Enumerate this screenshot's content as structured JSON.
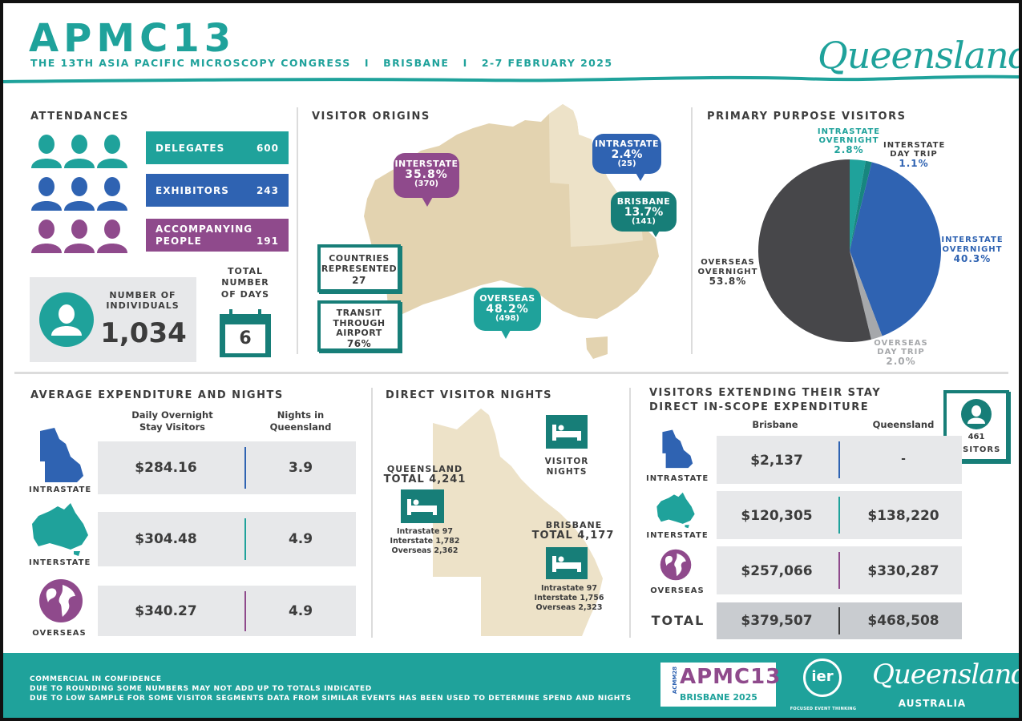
{
  "header": {
    "title": "APMC13",
    "subtitle": "THE 13TH ASIA PACIFIC MICROSCOPY CONGRESS   I   BRISBANE   I   2-7 FEBRUARY 2025",
    "brand": "Queensland"
  },
  "colors": {
    "teal": "#1fa29b",
    "blue": "#2f63b2",
    "purple": "#8f4a8c",
    "dark": "#3c3c3c",
    "grey": "#a6a8ab",
    "sand": "#e3d3b0",
    "sand_light": "#ede2c8"
  },
  "attendances": {
    "title": "ATTENDANCES",
    "rows": [
      {
        "label": "DELEGATES",
        "value": "600"
      },
      {
        "label": "EXHIBITORS",
        "value": "243"
      },
      {
        "label": "ACCOMPANYING PEOPLE",
        "value": "191"
      }
    ],
    "individuals_label": "NUMBER OF INDIVIDUALS",
    "individuals_value": "1,034",
    "days_label": "TOTAL NUMBER OF DAYS",
    "days_value": "6"
  },
  "visitor_origins": {
    "title": "VISITOR ORIGINS",
    "interstate": {
      "label": "INTERSTATE",
      "pct": "35.8%",
      "count": "(370)"
    },
    "intrastate": {
      "label": "INTRASTATE",
      "pct": "2.4%",
      "count": "(25)"
    },
    "brisbane": {
      "label": "BRISBANE",
      "pct": "13.7%",
      "count": "(141)"
    },
    "overseas": {
      "label": "OVERSEAS",
      "pct": "48.2%",
      "count": "(498)"
    },
    "countries_label": "COUNTRIES REPRESENTED",
    "countries_value": "27",
    "transit_label": "TRANSIT THROUGH AIRPORT",
    "transit_value": "76%"
  },
  "chart_data": {
    "type": "pie",
    "title": "PRIMARY PURPOSE VISITORS",
    "slices": [
      {
        "label": "INTRASTATE OVERNIGHT",
        "value": 2.8,
        "display": "2.8%",
        "color": "#1fa29b"
      },
      {
        "label": "INTERSTATE DAY TRIP",
        "value": 1.1,
        "display": "1.1%",
        "color": "#17867f"
      },
      {
        "label": "INTERSTATE OVERNIGHT",
        "value": 40.3,
        "display": "40.3%",
        "color": "#2f63b2"
      },
      {
        "label": "OVERSEAS DAY TRIP",
        "value": 2.0,
        "display": "2.0%",
        "color": "#a6a8ab"
      },
      {
        "label": "OVERSEAS OVERNIGHT",
        "value": 53.8,
        "display": "53.8%",
        "color": "#47474a"
      }
    ]
  },
  "expenditure": {
    "title": "AVERAGE EXPENDITURE AND NIGHTS",
    "col1": "Daily Overnight Stay Visitors",
    "col2": "Nights in Queensland",
    "rows": [
      {
        "label": "INTRASTATE",
        "spend": "$284.16",
        "nights": "3.9"
      },
      {
        "label": "INTERSTATE",
        "spend": "$304.48",
        "nights": "4.9"
      },
      {
        "label": "OVERSEAS",
        "spend": "$340.27",
        "nights": "4.9"
      }
    ]
  },
  "nights": {
    "title": "DIRECT VISITOR NIGHTS",
    "legend": "VISITOR NIGHTS",
    "qld_label": "QUEENSLAND",
    "qld_total": "TOTAL 4,241",
    "qld_lines": [
      "Intrastate 97",
      "Interstate 1,782",
      "Overseas 2,362"
    ],
    "bne_label": "BRISBANE",
    "bne_total": "TOTAL 4,177",
    "bne_lines": [
      "Intrastate 97",
      "Interstate 1,756",
      "Overseas 2,323"
    ]
  },
  "extending": {
    "title": "VISITORS EXTENDING THEIR STAY DIRECT IN-SCOPE EXPENDITURE",
    "col1": "Brisbane",
    "col2": "Queensland",
    "badge_value": "461",
    "badge_label": "VISITORS",
    "rows": [
      {
        "label": "INTRASTATE",
        "brisbane": "$2,137",
        "queensland": "-"
      },
      {
        "label": "INTERSTATE",
        "brisbane": "$120,305",
        "queensland": "$138,220"
      },
      {
        "label": "OVERSEAS",
        "brisbane": "$257,066",
        "queensland": "$330,287"
      }
    ],
    "total_label": "TOTAL",
    "total_brisbane": "$379,507",
    "total_queensland": "$468,508"
  },
  "footer": {
    "lines": [
      "COMMERCIAL IN CONFIDENCE",
      "DUE TO ROUNDING SOME NUMBERS MAY NOT ADD UP TO TOTALS INDICATED",
      "DUE TO LOW SAMPLE FOR SOME VISITOR SEGMENTS DATA FROM SIMILAR EVENTS HAS BEEN USED TO DETERMINE SPEND AND NIGHTS"
    ],
    "logo1_main": "APMC13",
    "logo1_side": "ACMM28",
    "logo1_sub": "BRISBANE 2025",
    "logo2": "ier",
    "logo2_sub": "FOCUSED EVENT THINKING",
    "logo3": "Queensland",
    "logo3_sub": "AUSTRALIA"
  }
}
